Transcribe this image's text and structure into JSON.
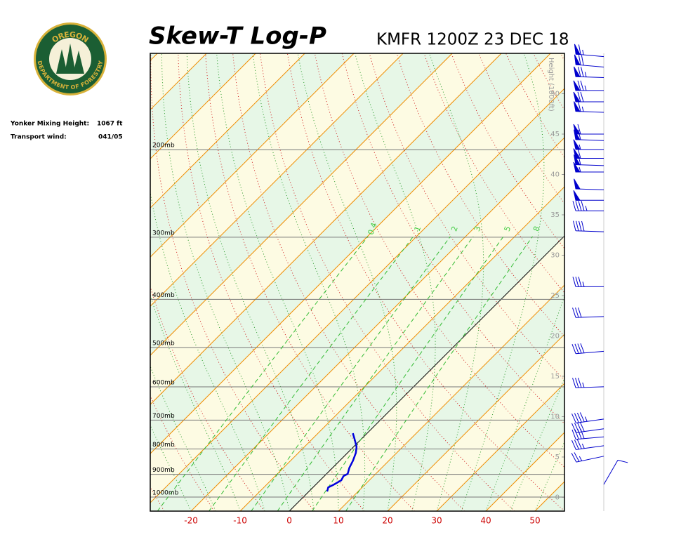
{
  "logo": {
    "top_text": "OREGON",
    "bottom_text": "DEPARTMENT OF FORESTRY"
  },
  "info": {
    "mixing_height_label": "Yonker Mixing Height:",
    "mixing_height": "1067 ft",
    "transport_wind_label": "Transport wind:",
    "transport_wind": "041/05"
  },
  "chart_data": {
    "type": "skewt",
    "title": "Skew-T Log-P",
    "subtitle": "KMFR 1200Z 23 DEC 18",
    "xlim": [
      -28.3,
      56
    ],
    "xticks": [
      -20,
      -10,
      0,
      10,
      20,
      30,
      40,
      50
    ],
    "ylim": [
      1067,
      128
    ],
    "yticks": [
      {
        "value": 1000,
        "label": "1000mb"
      },
      {
        "value": 900,
        "label": "900mb"
      },
      {
        "value": 800,
        "label": "800mb"
      },
      {
        "value": 700,
        "label": "700mb"
      },
      {
        "value": 600,
        "label": "600mb"
      },
      {
        "value": 500,
        "label": "500mb"
      },
      {
        "value": 400,
        "label": "400mb"
      },
      {
        "value": 300,
        "label": "300mb"
      },
      {
        "value": 200,
        "label": "200mb"
      }
    ],
    "height_label": "Height (1000ft)",
    "hlim": [
      -1.7,
      55
    ],
    "hticks": [
      0,
      5,
      10,
      15,
      20,
      25,
      30,
      35,
      40,
      45,
      50
    ],
    "mixing_ratio_labels": [
      0.4,
      1,
      2,
      3,
      5,
      8
    ],
    "temperature": {
      "color": "#0000dd",
      "pressure": [
        974,
        956,
        943,
        925,
        907,
        898,
        873,
        845,
        815,
        792,
        764,
        744
      ],
      "values": [
        3.7,
        3.1,
        3.7,
        4.3,
        3.9,
        4.3,
        3.4,
        2.7,
        1.7,
        0.6,
        -1.4,
        -2.9
      ]
    },
    "winds": {
      "color": "#0000cc",
      "height": [
        54.6,
        53.3,
        52,
        50.4,
        49,
        47.7,
        45,
        44.2,
        43.1,
        42,
        41.1,
        40.3,
        38.1,
        36.8,
        35.5,
        32.9,
        26.1,
        22.4,
        18.1,
        13.7,
        9.7,
        8.5,
        7.5,
        6.4,
        5.1,
        1.6
      ],
      "direction": [
        275,
        275,
        272,
        270,
        270,
        272,
        270,
        272,
        270,
        270,
        272,
        270,
        272,
        270,
        270,
        272,
        270,
        268,
        265,
        268,
        262,
        262,
        265,
        262,
        258,
        30
      ],
      "speed": [
        65,
        70,
        75,
        75,
        70,
        65,
        60,
        60,
        55,
        60,
        60,
        55,
        50,
        50,
        45,
        40,
        35,
        30,
        40,
        35,
        45,
        40,
        40,
        35,
        25,
        10
      ]
    }
  }
}
